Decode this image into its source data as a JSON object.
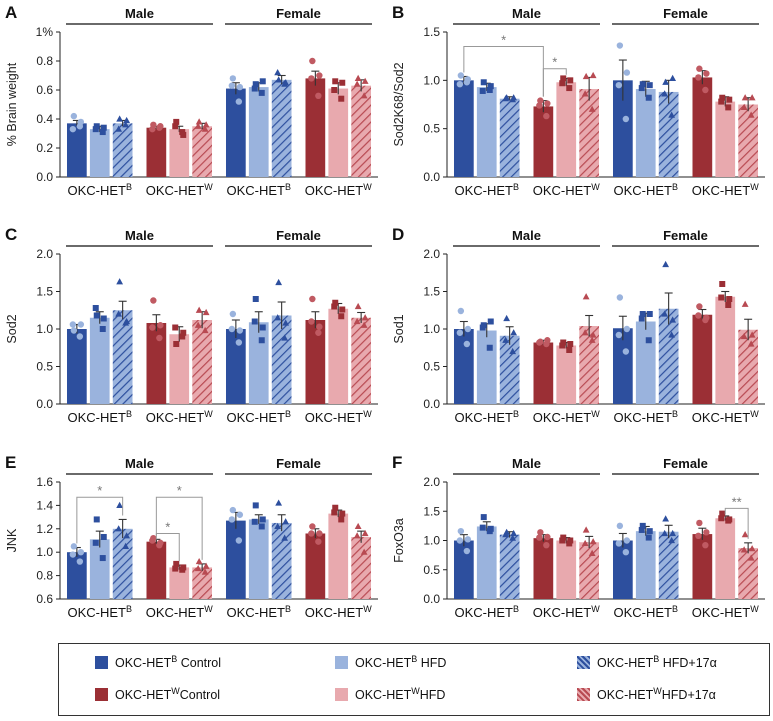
{
  "colors": {
    "blue_control": "#2d4f9e",
    "blue_hfd": "#9ab3dd",
    "red_control": "#9b2f35",
    "red_hfd": "#e8a9ae",
    "sig_line": "#999999"
  },
  "legend": [
    {
      "label_prefix": "OKC-HET",
      "sup": "B",
      "label_suffix": " Control",
      "color": "#2d4f9e",
      "hatch": false
    },
    {
      "label_prefix": "OKC-HET",
      "sup": "B",
      "label_suffix": " HFD",
      "color": "#9ab3dd",
      "hatch": false
    },
    {
      "label_prefix": "OKC-HET",
      "sup": "B",
      "label_suffix": " HFD+17α",
      "color": "#9ab3dd",
      "hatch": true
    },
    {
      "label_prefix": "OKC-HET",
      "sup": "W",
      "label_suffix": "Control",
      "color": "#9b2f35",
      "hatch": false
    },
    {
      "label_prefix": "OKC-HET",
      "sup": "W",
      "label_suffix": "HFD",
      "color": "#e8a9ae",
      "hatch": false
    },
    {
      "label_prefix": "OKC-HET",
      "sup": "W",
      "label_suffix": "HFD+17α",
      "color": "#e8a9ae",
      "hatch": true
    }
  ],
  "chart_data": [
    {
      "panel": "A",
      "type": "bar",
      "ylabel": "% Brain weight",
      "ylim": [
        0,
        1
      ],
      "yticks": [
        "0.0",
        "0.2",
        "0.4",
        "0.6",
        "0.8",
        "1%"
      ],
      "sex_labels": [
        "Male",
        "Female"
      ],
      "group_labels": [
        [
          "OKC-HET",
          "B"
        ],
        [
          "OKC-HET",
          "W"
        ],
        [
          "OKC-HET",
          "B"
        ],
        [
          "OKC-HET",
          "W"
        ]
      ],
      "values": [
        0.37,
        0.33,
        0.37,
        0.34,
        0.33,
        0.35,
        0.61,
        0.62,
        0.67,
        0.68,
        0.61,
        0.63
      ],
      "errors": [
        0.02,
        0.02,
        0.02,
        0.01,
        0.02,
        0.02,
        0.04,
        0.03,
        0.03,
        0.05,
        0.04,
        0.04
      ],
      "points": [
        [
          0.42,
          0.35,
          0.33,
          0.38
        ],
        [
          0.35,
          0.31,
          0.33,
          0.34
        ],
        [
          0.4,
          0.36,
          0.33,
          0.39
        ],
        [
          0.36,
          0.34,
          0.33,
          0.35
        ],
        [
          0.38,
          0.31,
          0.35,
          0.29
        ],
        [
          0.38,
          0.33,
          0.35,
          0.36
        ],
        [
          0.68,
          0.52,
          0.63,
          0.62
        ],
        [
          0.64,
          0.58,
          0.61,
          0.66
        ],
        [
          0.67,
          0.64,
          0.72,
          0.65
        ],
        [
          0.8,
          0.56,
          0.68,
          0.7
        ],
        [
          0.66,
          0.54,
          0.6,
          0.65
        ],
        [
          0.68,
          0.56,
          0.64,
          0.66
        ]
      ],
      "sig": []
    },
    {
      "panel": "B",
      "type": "bar",
      "ylabel": "Sod2K68/Sod2",
      "ylim": [
        0,
        1.5
      ],
      "yticks": [
        "0.0",
        "0.5",
        "1.0",
        "1.5"
      ],
      "sex_labels": [
        "Male",
        "Female"
      ],
      "group_labels": [
        [
          "OKC-HET",
          "B"
        ],
        [
          "OKC-HET",
          "W"
        ],
        [
          "OKC-HET",
          "B"
        ],
        [
          "OKC-HET",
          "W"
        ]
      ],
      "values": [
        1.0,
        0.93,
        0.81,
        0.73,
        0.98,
        0.91,
        1.0,
        0.91,
        0.88,
        1.03,
        0.78,
        0.75
      ],
      "errors": [
        0.04,
        0.04,
        0.02,
        0.06,
        0.04,
        0.12,
        0.21,
        0.08,
        0.12,
        0.07,
        0.05,
        0.07
      ],
      "points": [
        [
          1.05,
          0.98,
          0.96,
          1.01
        ],
        [
          0.98,
          0.9,
          0.89,
          0.94
        ],
        [
          0.82,
          0.8,
          0.81,
          0.82
        ],
        [
          0.79,
          0.63,
          0.74,
          0.76
        ],
        [
          1.02,
          0.92,
          0.97,
          1.0
        ],
        [
          1.04,
          0.7,
          0.86,
          1.05
        ],
        [
          1.36,
          0.6,
          0.95,
          1.08
        ],
        [
          0.96,
          0.82,
          0.92,
          0.95
        ],
        [
          0.98,
          0.64,
          0.86,
          1.02
        ],
        [
          1.12,
          0.9,
          1.03,
          1.07
        ],
        [
          0.82,
          0.72,
          0.78,
          0.8
        ],
        [
          0.82,
          0.64,
          0.72,
          0.82
        ]
      ],
      "sig": [
        {
          "from": 0,
          "to": 3,
          "level": 1.35,
          "label": "*"
        },
        {
          "from": 3,
          "to": 4,
          "level": 1.12,
          "label": "*"
        }
      ]
    },
    {
      "panel": "C",
      "type": "bar",
      "ylabel": "Sod2",
      "ylim": [
        0,
        2
      ],
      "yticks": [
        "0.0",
        "0.5",
        "1.0",
        "1.5",
        "2.0"
      ],
      "sex_labels": [
        "Male",
        "Female"
      ],
      "group_labels": [
        [
          "OKC-HET",
          "B"
        ],
        [
          "OKC-HET",
          "W"
        ],
        [
          "OKC-HET",
          "B"
        ],
        [
          "OKC-HET",
          "W"
        ]
      ],
      "values": [
        1.0,
        1.15,
        1.25,
        1.08,
        0.93,
        1.12,
        1.0,
        1.09,
        1.18,
        1.12,
        1.27,
        1.15
      ],
      "errors": [
        0.06,
        0.08,
        0.12,
        0.11,
        0.1,
        0.11,
        0.12,
        0.14,
        0.18,
        0.11,
        0.07,
        0.07
      ],
      "points": [
        [
          0.98,
          0.9,
          1.06,
          1.06
        ],
        [
          1.18,
          1.0,
          1.28,
          1.14
        ],
        [
          1.63,
          1.08,
          1.2,
          1.1
        ],
        [
          1.38,
          0.88,
          1.02,
          1.05
        ],
        [
          0.8,
          0.9,
          1.02,
          0.95
        ],
        [
          1.25,
          0.98,
          1.05,
          1.22
        ],
        [
          1.2,
          0.82,
          1.0,
          0.98
        ],
        [
          1.4,
          0.85,
          1.1,
          1.02
        ],
        [
          1.62,
          0.88,
          1.15,
          1.08
        ],
        [
          1.4,
          0.95,
          1.1,
          1.03
        ],
        [
          1.35,
          1.17,
          1.3,
          1.26
        ],
        [
          1.3,
          1.05,
          1.1,
          1.15
        ]
      ],
      "sig": []
    },
    {
      "panel": "D",
      "type": "bar",
      "ylabel": "Sod1",
      "ylim": [
        0,
        2
      ],
      "yticks": [
        "0.0",
        "0.5",
        "1.0",
        "1.5",
        "2.0"
      ],
      "sex_labels": [
        "Male",
        "Female"
      ],
      "group_labels": [
        [
          "OKC-HET",
          "B"
        ],
        [
          "OKC-HET",
          "W"
        ],
        [
          "OKC-HET",
          "B"
        ],
        [
          "OKC-HET",
          "W"
        ]
      ],
      "values": [
        1.0,
        0.98,
        0.91,
        0.82,
        0.78,
        1.04,
        1.01,
        1.1,
        1.27,
        1.19,
        1.43,
        0.99
      ],
      "errors": [
        0.1,
        0.09,
        0.12,
        0.03,
        0.04,
        0.14,
        0.16,
        0.11,
        0.21,
        0.07,
        0.07,
        0.14
      ],
      "points": [
        [
          1.24,
          0.8,
          0.95,
          1.0
        ],
        [
          1.05,
          0.75,
          1.02,
          1.1
        ],
        [
          1.14,
          0.7,
          0.85,
          0.95
        ],
        [
          0.83,
          0.8,
          0.82,
          0.85
        ],
        [
          0.82,
          0.72,
          0.78,
          0.8
        ],
        [
          1.43,
          0.85,
          0.95,
          0.92
        ],
        [
          1.42,
          0.7,
          0.92,
          1.0
        ],
        [
          1.2,
          0.85,
          1.14,
          1.2
        ],
        [
          1.86,
          0.92,
          1.2,
          1.12
        ],
        [
          1.3,
          1.12,
          1.18,
          1.15
        ],
        [
          1.6,
          1.32,
          1.42,
          1.4
        ],
        [
          1.33,
          0.8,
          0.9,
          0.92
        ]
      ],
      "sig": []
    },
    {
      "panel": "E",
      "type": "bar",
      "ylabel": "JNK",
      "ylim": [
        0.6,
        1.6
      ],
      "yticks": [
        "0.6",
        "0.8",
        "1.0",
        "1.2",
        "1.4",
        "1.6"
      ],
      "sex_labels": [
        "Male",
        "Female"
      ],
      "group_labels": [
        [
          "OKC-HET",
          "B"
        ],
        [
          "OKC-HET",
          "W"
        ],
        [
          "OKC-HET",
          "B"
        ],
        [
          "OKC-HET",
          "W"
        ]
      ],
      "values": [
        1.0,
        1.11,
        1.2,
        1.09,
        0.87,
        0.87,
        1.27,
        1.28,
        1.25,
        1.16,
        1.33,
        1.13
      ],
      "errors": [
        0.04,
        0.07,
        0.08,
        0.02,
        0.02,
        0.03,
        0.07,
        0.04,
        0.07,
        0.04,
        0.03,
        0.05
      ],
      "points": [
        [
          1.05,
          0.92,
          0.98,
          1.0
        ],
        [
          1.28,
          0.95,
          1.08,
          1.13
        ],
        [
          1.4,
          1.05,
          1.2,
          1.14
        ],
        [
          1.12,
          1.06,
          1.1,
          1.08
        ],
        [
          0.9,
          0.85,
          0.86,
          0.87
        ],
        [
          0.92,
          0.83,
          0.86,
          0.88
        ],
        [
          1.36,
          1.1,
          1.28,
          1.32
        ],
        [
          1.4,
          1.22,
          1.26,
          1.28
        ],
        [
          1.42,
          1.12,
          1.22,
          1.26
        ],
        [
          1.22,
          1.09,
          1.16,
          1.16
        ],
        [
          1.38,
          1.28,
          1.34,
          1.33
        ],
        [
          1.22,
          1.0,
          1.14,
          1.16
        ]
      ],
      "sig": [
        {
          "from": 0,
          "to": 2,
          "level": 1.47,
          "label": "*"
        },
        {
          "from": 3,
          "to": 5,
          "level": 1.47,
          "label": "*"
        },
        {
          "from": 3,
          "to": 4,
          "level": 1.16,
          "label": "*"
        }
      ]
    },
    {
      "panel": "F",
      "type": "bar",
      "ylabel": "FoxO3a",
      "ylim": [
        0,
        2
      ],
      "yticks": [
        "0.0",
        "0.5",
        "1.0",
        "1.5",
        "2.0"
      ],
      "sex_labels": [
        "Male",
        "Female"
      ],
      "group_labels": [
        [
          "OKC-HET",
          "B"
        ],
        [
          "OKC-HET",
          "W"
        ],
        [
          "OKC-HET",
          "B"
        ],
        [
          "OKC-HET",
          "W"
        ]
      ],
      "values": [
        1.0,
        1.24,
        1.1,
        1.04,
        1.0,
        0.97,
        1.0,
        1.16,
        1.15,
        1.11,
        1.38,
        0.87
      ],
      "errors": [
        0.1,
        0.08,
        0.05,
        0.06,
        0.05,
        0.1,
        0.12,
        0.08,
        0.11,
        0.1,
        0.04,
        0.09
      ],
      "points": [
        [
          1.16,
          0.82,
          1.0,
          1.02
        ],
        [
          1.4,
          1.16,
          1.22,
          1.2
        ],
        [
          1.14,
          1.04,
          1.1,
          1.12
        ],
        [
          1.14,
          0.92,
          1.05,
          1.06
        ],
        [
          1.05,
          0.95,
          1.0,
          1.0
        ],
        [
          1.18,
          0.78,
          0.95,
          0.98
        ],
        [
          1.25,
          0.8,
          0.95,
          1.0
        ],
        [
          1.25,
          1.05,
          1.18,
          1.16
        ],
        [
          1.37,
          1.0,
          1.12,
          1.12
        ],
        [
          1.3,
          0.92,
          1.08,
          1.14
        ],
        [
          1.46,
          1.34,
          1.38,
          1.36
        ],
        [
          1.1,
          0.7,
          0.84,
          0.86
        ]
      ],
      "sig": [
        {
          "from": 10,
          "to": 11,
          "level": 1.55,
          "label": "**"
        }
      ]
    }
  ]
}
